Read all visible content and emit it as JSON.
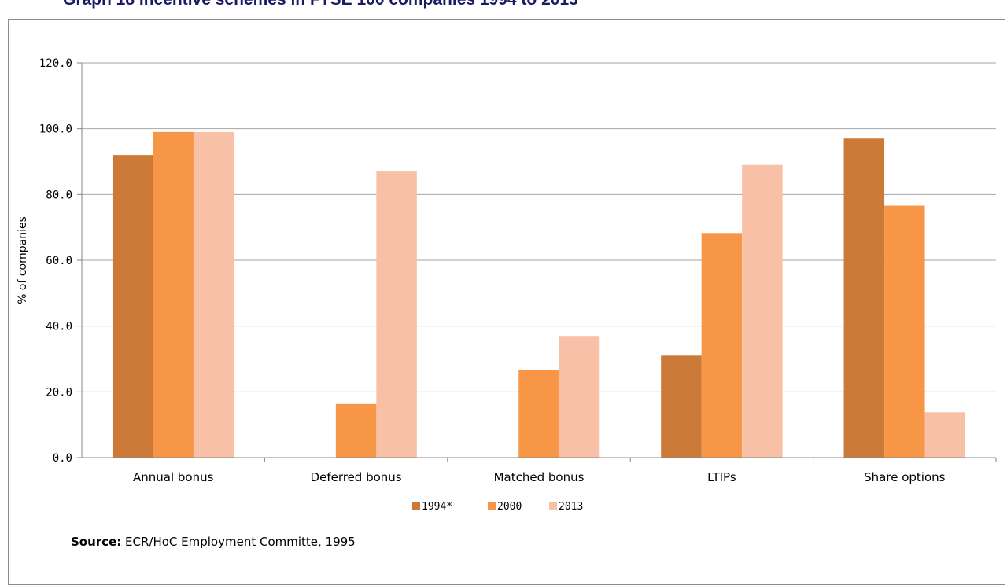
{
  "title": "Graph 18 Incentive schemes in FTSE 100 companies 1994 to 2013",
  "source": {
    "label": "Source:",
    "text": "ECR/HoC Employment  Committe, 1995"
  },
  "colors": {
    "1994*": "#cc7a38",
    "2000": "#f79646",
    "2013": "#f8c1a7",
    "gridline": "#a6a6a6",
    "axis": "#868686"
  },
  "chart_data": {
    "type": "bar",
    "categories": [
      "Annual bonus",
      "Deferred bonus",
      "Matched bonus",
      "LTIPs",
      "Share options"
    ],
    "series": [
      {
        "name": "1994*",
        "values": [
          92.0,
          0,
          0,
          31.0,
          97.0
        ]
      },
      {
        "name": "2000",
        "values": [
          99.0,
          16.3,
          26.6,
          68.3,
          76.6
        ]
      },
      {
        "name": "2013",
        "values": [
          99.0,
          87.0,
          37.0,
          89.0,
          13.8
        ]
      }
    ],
    "ylabel": "% of companies",
    "xlabel": "",
    "ylim": [
      0,
      120
    ],
    "yticks": [
      "0.0",
      "20.0",
      "40.0",
      "60.0",
      "80.0",
      "100.0",
      "120.0"
    ],
    "grid": true,
    "legend": "bottom"
  }
}
